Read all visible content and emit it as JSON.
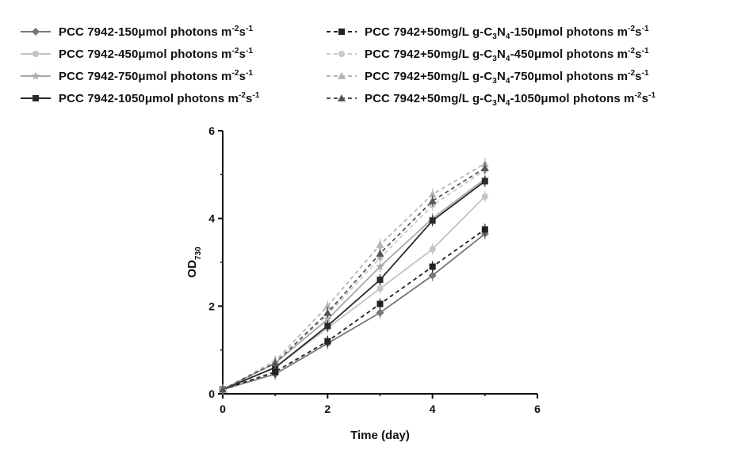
{
  "chart_data": {
    "type": "line",
    "xlabel": "Time (day)",
    "ylabel": "OD",
    "ylabel_sub": "730",
    "xlim": [
      0,
      6
    ],
    "ylim": [
      0,
      6
    ],
    "xticks": [
      "0",
      "2",
      "4",
      "6"
    ],
    "yticks": [
      "0",
      "2",
      "4",
      "6"
    ],
    "grid": false,
    "legend_position": "top",
    "x": [
      0,
      1,
      2,
      3,
      4,
      5
    ],
    "series": [
      {
        "name": "PCC 7942-150μmol photons m-2s-1",
        "label_parts": {
          "main": "PCC 7942-150μmol photons m",
          "exp1": "-2",
          "mid": "s",
          "exp2": "-1"
        },
        "values": [
          0.1,
          0.45,
          1.15,
          1.85,
          2.7,
          3.65
        ],
        "color": "#777777",
        "dash": false,
        "marker": "diamond"
      },
      {
        "name": "PCC 7942-450μmol photons m-2s-1",
        "label_parts": {
          "main": "PCC 7942-450μmol photons m",
          "exp1": "-2",
          "mid": "s",
          "exp2": "-1"
        },
        "values": [
          0.1,
          0.6,
          1.5,
          2.4,
          3.3,
          4.5
        ],
        "color": "#c4c4c4",
        "dash": false,
        "marker": "circle"
      },
      {
        "name": "PCC 7942-750μmol photons m-2s-1",
        "label_parts": {
          "main": "PCC 7942-750μmol photons m",
          "exp1": "-2",
          "mid": "s",
          "exp2": "-1"
        },
        "values": [
          0.1,
          0.7,
          1.7,
          2.9,
          4.0,
          4.9
        ],
        "color": "#a9a9a9",
        "dash": false,
        "marker": "star"
      },
      {
        "name": "PCC 7942-1050μmol photons m-2s-1",
        "label_parts": {
          "main": "PCC 7942-1050μmol photons m",
          "exp1": "-2",
          "mid": "s",
          "exp2": "-1"
        },
        "values": [
          0.1,
          0.6,
          1.55,
          2.6,
          3.95,
          4.85
        ],
        "color": "#2a2a2a",
        "dash": false,
        "marker": "square"
      },
      {
        "name": "PCC 7942+50mg/L g-C3N4-150μmol photons m-2s-1",
        "label_parts": {
          "main": "PCC 7942+50mg/L g-C",
          "s1": "3",
          "n": "N",
          "s2": "4",
          "rest": "-150μmol photons m",
          "exp1": "-2",
          "mid": "s",
          "exp2": "-1"
        },
        "values": [
          0.1,
          0.5,
          1.2,
          2.05,
          2.9,
          3.75
        ],
        "color": "#222222",
        "dash": true,
        "marker": "square"
      },
      {
        "name": "PCC 7942+50mg/L g-C3N4-450μmol photons m-2s-1",
        "label_parts": {
          "main": "PCC 7942+50mg/L g-C",
          "s1": "3",
          "n": "N",
          "s2": "4",
          "rest": "-450μmol photons m",
          "exp1": "-2",
          "mid": "s",
          "exp2": "-1"
        },
        "values": [
          0.1,
          0.7,
          1.8,
          3.1,
          4.3,
          5.1
        ],
        "color": "#c9c9c9",
        "dash": true,
        "marker": "circle"
      },
      {
        "name": "PCC 7942+50mg/L g-C3N4-750μmol photons m-2s-1",
        "label_parts": {
          "main": "PCC 7942+50mg/L g-C",
          "s1": "3",
          "n": "N",
          "s2": "4",
          "rest": "-750μmol photons m",
          "exp1": "-2",
          "mid": "s",
          "exp2": "-1"
        },
        "values": [
          0.1,
          0.75,
          2.0,
          3.4,
          4.55,
          5.25
        ],
        "color": "#b4b4b4",
        "dash": true,
        "marker": "triangle"
      },
      {
        "name": "PCC 7942+50mg/L g-C3N4-1050μmol photons m-2s-1",
        "label_parts": {
          "main": "PCC 7942+50mg/L g-C",
          "s1": "3",
          "n": "N",
          "s2": "4",
          "rest": "-1050μmol photons m",
          "exp1": "-2",
          "mid": "s",
          "exp2": "-1"
        },
        "values": [
          0.1,
          0.7,
          1.85,
          3.2,
          4.4,
          5.15
        ],
        "color": "#555555",
        "dash": true,
        "marker": "triangle"
      }
    ]
  }
}
